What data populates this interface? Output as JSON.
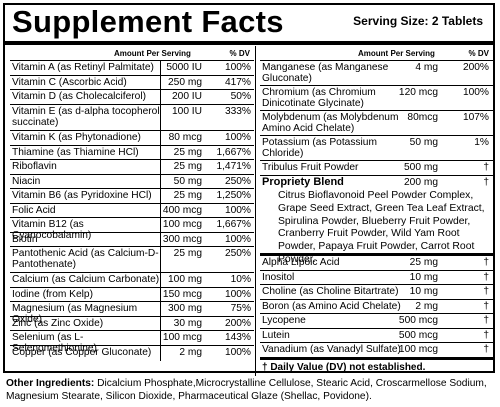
{
  "title": "Supplement Facts",
  "serving_size": "Serving Size: 2 Tablets",
  "header": {
    "amount_per_serving": "Amount Per Serving",
    "dv": "% DV"
  },
  "left_rows": [
    {
      "name": "Vitamin A (as Retinyl Palmitate)",
      "amount": "5000 IU",
      "dv": "100%"
    },
    {
      "name": "Vitamin C (Ascorbic Acid)",
      "amount": "250 mg",
      "dv": "417%"
    },
    {
      "name": "Vitamin D (as Cholecalciferol)",
      "amount": "200 IU",
      "dv": "50%"
    },
    {
      "name": "Vitamin E (as d-alpha tocopherol succinate)",
      "amount": "100 IU",
      "dv": "333%"
    },
    {
      "name": "Vitamin K (as Phytonadione)",
      "amount": "80 mcg",
      "dv": "100%"
    },
    {
      "name": "Thiamine (as Thiamine HCl)",
      "amount": "25 mg",
      "dv": "1,667%"
    },
    {
      "name": "Riboflavin",
      "amount": "25 mg",
      "dv": "1,471%"
    },
    {
      "name": "Niacin",
      "amount": "50 mg",
      "dv": "250%"
    },
    {
      "name": "Vitamin B6 (as Pyridoxine HCl)",
      "amount": "25 mg",
      "dv": "1,250%"
    },
    {
      "name": "Folic Acid",
      "amount": "400 mcg",
      "dv": "100%"
    },
    {
      "name": "Vitamin B12 (as Cyanocobalamin)",
      "amount": "100 mcg",
      "dv": "1,667%"
    },
    {
      "name": "Biotin",
      "amount": "300 mcg",
      "dv": "100%"
    },
    {
      "name": "Pantothenic Acid (as Calcium-D-Pantothenate)",
      "amount": "25 mg",
      "dv": "250%"
    },
    {
      "name": "Calcium (as Calcium Carbonate)",
      "amount": "100 mg",
      "dv": "10%"
    },
    {
      "name": "Iodine (from Kelp)",
      "amount": "150 mcg",
      "dv": "100%"
    },
    {
      "name": "Magnesium (as Magnesium Oxide)",
      "amount": "300 mg",
      "dv": "75%"
    },
    {
      "name": "Zinc (as Zinc Oxide)",
      "amount": "30 mg",
      "dv": "200%"
    },
    {
      "name": "Selenium (as L-Selenomethionine)",
      "amount": "100 mcg",
      "dv": "143%"
    },
    {
      "name": "Copper (as Copper Gluconate)",
      "amount": "2 mg",
      "dv": "100%"
    }
  ],
  "right_rows_top": [
    {
      "name": "Manganese (as Manganese Gluconate)",
      "amount": "4 mg",
      "dv": "200%"
    },
    {
      "name": "Chromium (as Chromium Dinicotinate Glycinate)",
      "amount": "120 mcg",
      "dv": "100%"
    },
    {
      "name": "Molybdenum (as Molybdenum Amino Acid Chelate)",
      "amount": "80mcg",
      "dv": "107%"
    },
    {
      "name": "Potassium (as Potassium Chloride)",
      "amount": "50 mg",
      "dv": "1%"
    },
    {
      "name": "Tribulus Fruit Powder",
      "amount": "500 mg",
      "dv": "†"
    }
  ],
  "blend": {
    "name": "Propriety Blend",
    "amount": "200 mg",
    "dv": "†",
    "ingredients": "Citrus Bioflavonoid Peel Powder Complex, Grape Seed Extract, Green Tea Leaf Extract, Spirulina Powder, Blueberry Fruit Powder, Cranberry Fruit Powder, Wild Yam Root Powder, Papaya Fruit Powder, Carrot Root Powder."
  },
  "right_rows_bottom": [
    {
      "name": "Alpha Lipoic Acid",
      "amount": "25 mg",
      "dv": "†"
    },
    {
      "name": "Inositol",
      "amount": "10 mg",
      "dv": "†"
    },
    {
      "name": "Choline (as Choline Bitartrate)",
      "amount": "10 mg",
      "dv": "†"
    },
    {
      "name": "Boron (as Amino Acid Chelate)",
      "amount": "2 mg",
      "dv": "†"
    },
    {
      "name": "Lycopene",
      "amount": "500 mcg",
      "dv": "†"
    },
    {
      "name": "Lutein",
      "amount": "500 mcg",
      "dv": "†"
    },
    {
      "name": "Vanadium (as Vanadyl Sulfate)",
      "amount": "100 mcg",
      "dv": "†"
    }
  ],
  "footnote": "† Daily Value (DV) not established.",
  "other_ingredients": {
    "label": "Other Ingredients:",
    "text": "Dicalcium Phosphate,Microcrystalline Cellulose, Stearic Acid, Croscarmellose Sodium, Magnesium Stearate, Silicon Dioxide, Pharmaceutical Glaze (Shellac, Povidone)."
  }
}
